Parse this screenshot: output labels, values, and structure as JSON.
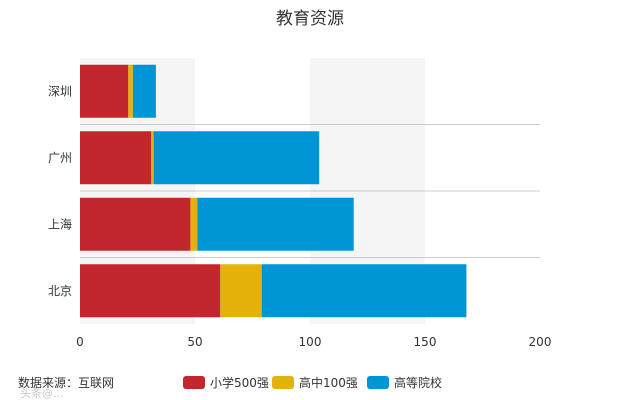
{
  "chart_data": {
    "type": "bar",
    "orientation": "horizontal",
    "stacked": true,
    "title": "教育资源",
    "categories": [
      "深圳",
      "广州",
      "上海",
      "北京"
    ],
    "series": [
      {
        "name": "小学500强",
        "color": "#c1272d",
        "values": [
          21,
          31,
          48,
          61
        ]
      },
      {
        "name": "高中100强",
        "color": "#e3b30b",
        "values": [
          2,
          1,
          3,
          18
        ]
      },
      {
        "name": "高等院校",
        "color": "#0096d6",
        "values": [
          10,
          72,
          68,
          89
        ]
      }
    ],
    "xlim": [
      0,
      200
    ],
    "xticks": [
      0,
      50,
      100,
      150,
      200
    ],
    "legend_position": "bottom",
    "source_text": "数据来源：互联网",
    "watermark_text": "头条@..."
  }
}
